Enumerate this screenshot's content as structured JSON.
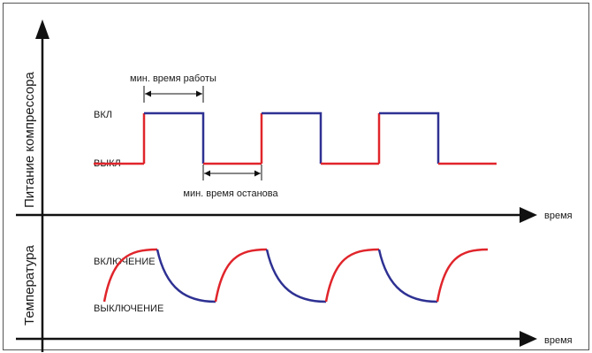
{
  "colors": {
    "red": "#e0252b",
    "blue": "#2e3192",
    "axis": "#111111",
    "border": "#555555"
  },
  "power_panel": {
    "y_title": "Питание компрессора",
    "level_on": "ВКЛ",
    "level_off": "ВЫКЛ",
    "x_label": "время",
    "min_run": "мин. время работы",
    "min_stop": "мин. время останова"
  },
  "temp_panel": {
    "y_title": "Температура",
    "level_on": "ВКЛЮЧЕНИЕ",
    "level_off": "ВЫКЛЮЧЕНИЕ",
    "x_label": "время"
  },
  "chart_data": {
    "type": "line",
    "power_cycles": 3,
    "temperature_cycles": 3
  }
}
